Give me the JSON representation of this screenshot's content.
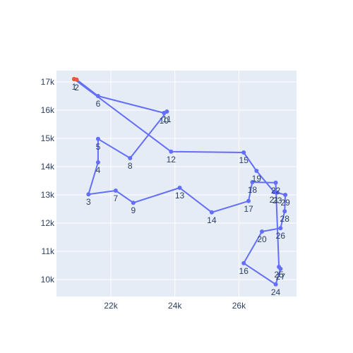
{
  "chart_data": {
    "type": "scatter",
    "mode": "lines+markers+text",
    "title": "",
    "xlabel": "",
    "ylabel": "",
    "xlim": [
      20300,
      27800
    ],
    "ylim": [
      9400,
      17400
    ],
    "x_ticks": [
      22000,
      24000,
      26000
    ],
    "x_tick_labels": [
      "22k",
      "24k",
      "26k"
    ],
    "y_ticks": [
      10000,
      11000,
      12000,
      13000,
      14000,
      15000,
      16000,
      17000
    ],
    "y_tick_labels": [
      "10k",
      "11k",
      "12k",
      "13k",
      "14k",
      "15k",
      "16k",
      "17k"
    ],
    "grid": true,
    "legend": "none",
    "colors": {
      "line": "#636efa",
      "highlight": "#ef553b",
      "plot_bg": "#e5ecf6",
      "grid": "#ffffff",
      "text": "#2a3f5f"
    },
    "points": [
      {
        "label": "1",
        "x": 20850,
        "y": 17100
      },
      {
        "label": "2",
        "x": 20930,
        "y": 17080
      },
      {
        "label": "6",
        "x": 21600,
        "y": 16500
      },
      {
        "label": "10",
        "x": 23660,
        "y": 15900
      },
      {
        "label": "11",
        "x": 23750,
        "y": 15950
      },
      {
        "label": "8",
        "x": 22600,
        "y": 14300
      },
      {
        "label": "5",
        "x": 21600,
        "y": 14980
      },
      {
        "label": "4",
        "x": 21600,
        "y": 14150
      },
      {
        "label": "3",
        "x": 21300,
        "y": 13020
      },
      {
        "label": "7",
        "x": 22150,
        "y": 13150
      },
      {
        "label": "9",
        "x": 22700,
        "y": 12720
      },
      {
        "label": "13",
        "x": 24150,
        "y": 13250
      },
      {
        "label": "14",
        "x": 25150,
        "y": 12380
      },
      {
        "label": "17",
        "x": 26300,
        "y": 12780
      },
      {
        "label": "18",
        "x": 26420,
        "y": 13450
      },
      {
        "label": "22",
        "x": 27150,
        "y": 13430
      },
      {
        "label": "25",
        "x": 27250,
        "y": 10450
      },
      {
        "label": "27",
        "x": 27300,
        "y": 10380
      },
      {
        "label": "24",
        "x": 27150,
        "y": 9830
      },
      {
        "label": "16",
        "x": 26150,
        "y": 10580
      },
      {
        "label": "20",
        "x": 26720,
        "y": 11700
      },
      {
        "label": "26",
        "x": 27300,
        "y": 11820
      },
      {
        "label": "28",
        "x": 27430,
        "y": 12420
      },
      {
        "label": "29",
        "x": 27450,
        "y": 13000
      },
      {
        "label": "23",
        "x": 27200,
        "y": 13080
      },
      {
        "label": "21",
        "x": 27100,
        "y": 13100
      },
      {
        "label": "19",
        "x": 26550,
        "y": 13850
      },
      {
        "label": "15",
        "x": 26150,
        "y": 14500
      },
      {
        "label": "12",
        "x": 23880,
        "y": 14530
      },
      {
        "label": "1",
        "x": 20850,
        "y": 17100
      }
    ],
    "highlighted_labels": [
      "1",
      "2"
    ]
  }
}
